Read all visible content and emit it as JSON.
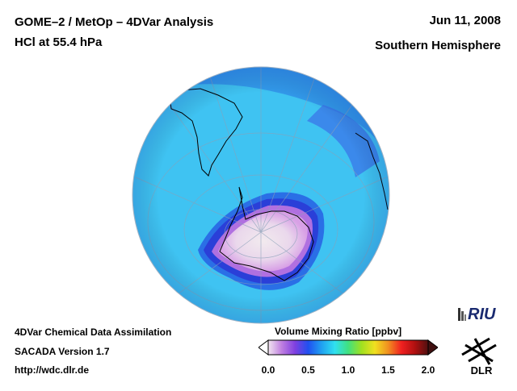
{
  "header": {
    "title_line1": "GOME–2 / MetOp – 4DVar Analysis",
    "title_line2": "HCl at 55.4 hPa",
    "date": "Jun 11, 2008",
    "region": "Southern Hemisphere"
  },
  "footer": {
    "line1": "4DVar Chemical Data Assimilation",
    "line2": "SACADA Version 1.7",
    "line3": "http://wdc.dlr.de"
  },
  "colorbar": {
    "title": "Volume Mixing Ratio [ppbv]",
    "ticks": [
      "0.0",
      "0.5",
      "1.0",
      "1.5",
      "2.0"
    ],
    "range": [
      0.0,
      2.0
    ],
    "colors": [
      "#f2e6f0",
      "#c080e0",
      "#8040e0",
      "#2050f0",
      "#20a0f0",
      "#30e0f0",
      "#40e080",
      "#a0e020",
      "#f0e020",
      "#f09020",
      "#f02020",
      "#b01010",
      "#501010"
    ]
  },
  "logos": {
    "riu": "RIU",
    "dlr": "DLR"
  },
  "map": {
    "projection": "orthographic-south-polar",
    "background_color": "#3fc3f2",
    "ring_color": "#2f7fe6",
    "ring_dark_color": "#2a3fd8",
    "hole_color": "#efe0ee"
  }
}
